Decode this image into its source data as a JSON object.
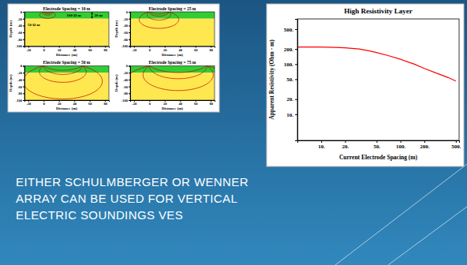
{
  "slide": {
    "body_lines": [
      "EITHER SCHULMBERGER OR WENNER",
      "ARRAY CAN BE USED FOR VERTICAL",
      "ELECTRIC SOUNDINGS VES"
    ]
  },
  "chart_data": [
    {
      "type": "section",
      "title": "Electrode Spacing = 10 m",
      "xlabel": "Distance (m)",
      "ylabel": "Depth (m)",
      "electrode_spacing": 10,
      "xlim": [
        -25,
        85
      ],
      "ylim": [
        -100,
        0
      ],
      "xticks": [
        -20,
        0,
        20,
        40,
        60,
        80
      ],
      "yticks": [
        0,
        -20,
        -40,
        -60,
        -80,
        -100
      ],
      "layers": [
        {
          "top": 0,
          "bottom": -20,
          "color": "#33cc33",
          "label": "100 Ω m",
          "thickness_label": "20 m"
        },
        {
          "top": -20,
          "bottom": -100,
          "color": "#ffe84f",
          "label": "50 Ω m"
        }
      ]
    },
    {
      "type": "section",
      "title": "Electrode Spacing = 25 m",
      "xlabel": "Distance (m)",
      "ylabel": "Depth (m)",
      "electrode_spacing": 25,
      "xlim": [
        -25,
        85
      ],
      "ylim": [
        -100,
        0
      ],
      "xticks": [
        -20,
        0,
        20,
        40,
        60,
        80
      ],
      "yticks": [
        0,
        -20,
        -40,
        -60,
        -80,
        -100
      ],
      "layers": [
        {
          "top": 0,
          "bottom": -20,
          "color": "#33cc33"
        },
        {
          "top": -20,
          "bottom": -100,
          "color": "#ffe84f"
        }
      ]
    },
    {
      "type": "section",
      "title": "Electrode Spacing = 50 m",
      "xlabel": "Distance (m)",
      "ylabel": "Depth (m)",
      "electrode_spacing": 50,
      "xlim": [
        -25,
        85
      ],
      "ylim": [
        -100,
        0
      ],
      "xticks": [
        -20,
        0,
        20,
        40,
        60,
        80
      ],
      "yticks": [
        0,
        -20,
        -40,
        -60,
        -80,
        -100
      ],
      "layers": [
        {
          "top": 0,
          "bottom": -20,
          "color": "#33cc33"
        },
        {
          "top": -20,
          "bottom": -100,
          "color": "#ffe84f"
        }
      ]
    },
    {
      "type": "section",
      "title": "Electrode Spacing = 75 m",
      "xlabel": "Distance (m)",
      "ylabel": "Depth (m)",
      "electrode_spacing": 75,
      "xlim": [
        -25,
        85
      ],
      "ylim": [
        -100,
        0
      ],
      "xticks": [
        -20,
        0,
        20,
        40,
        60,
        80
      ],
      "yticks": [
        0,
        -20,
        -40,
        -60,
        -80,
        -100
      ],
      "layers": [
        {
          "top": 0,
          "bottom": -20,
          "color": "#33cc33"
        },
        {
          "top": -20,
          "bottom": -100,
          "color": "#ffe84f"
        }
      ]
    },
    {
      "type": "line",
      "title": "High Resistivity Layer",
      "xlabel": "Current Electrode Spacing (m)",
      "ylabel": "Apparent Resistivity (Ohm - m)",
      "log": true,
      "grid": false,
      "color": "#ff0000",
      "x": [
        5,
        7,
        10,
        15,
        20,
        30,
        40,
        50,
        70,
        100,
        150,
        200,
        300,
        400,
        500
      ],
      "values": [
        220,
        220,
        219,
        216,
        212,
        200,
        185,
        170,
        148,
        125,
        100,
        82,
        64,
        54,
        46
      ],
      "xlim": [
        5,
        550
      ],
      "ylim": [
        3,
        800
      ],
      "xticks": [
        {
          "value": 10,
          "label": "10."
        },
        {
          "value": 20,
          "label": "20."
        },
        {
          "value": 50,
          "label": "50."
        },
        {
          "value": 100,
          "label": "100."
        },
        {
          "value": 200,
          "label": "200."
        },
        {
          "value": 500,
          "label": "500."
        }
      ],
      "yticks": [
        {
          "value": 10,
          "label": "10."
        },
        {
          "value": 20,
          "label": "20."
        },
        {
          "value": 50,
          "label": "50."
        },
        {
          "value": 100,
          "label": "100."
        },
        {
          "value": 200,
          "label": "200."
        },
        {
          "value": 500,
          "label": "500."
        }
      ]
    }
  ]
}
